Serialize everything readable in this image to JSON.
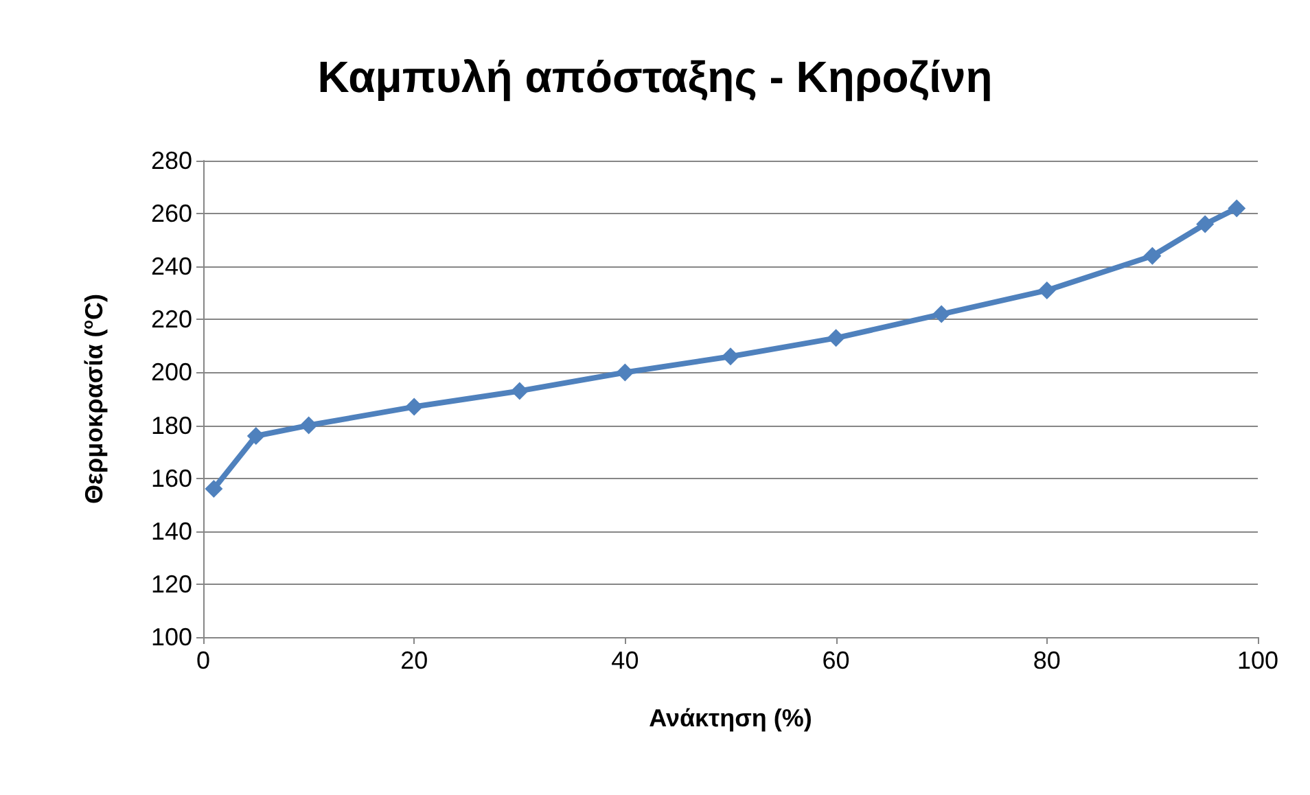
{
  "chart_data": {
    "type": "line",
    "title": "Καμπυλή απόσταξης - Κηροζίνη",
    "xlabel": "Ανάκτηση (%)",
    "ylabel": "Θερμοκρασία ($^{o}$C)",
    "x": [
      1,
      5,
      10,
      20,
      30,
      40,
      50,
      60,
      70,
      80,
      90,
      95,
      98
    ],
    "series": [
      {
        "color": "#4f81bd",
        "values": [
          156,
          176,
          180,
          187,
          193,
          200,
          206,
          213,
          222,
          231,
          244,
          256,
          262
        ]
      }
    ],
    "xlim": [
      0,
      100
    ],
    "xticks": [
      0,
      20,
      40,
      60,
      80,
      100
    ],
    "ylim": [
      100,
      280
    ],
    "yticks": [
      100,
      120,
      140,
      160,
      180,
      200,
      220,
      240,
      260,
      280
    ],
    "grid": "y",
    "marker": "diamond",
    "line_style": "solid"
  }
}
